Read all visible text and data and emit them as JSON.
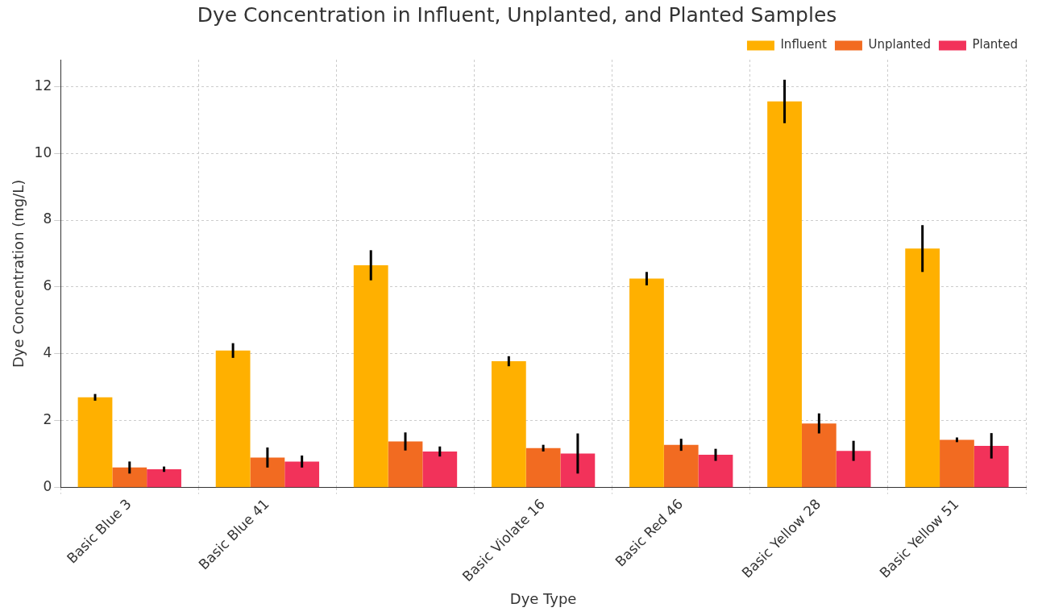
{
  "chart_data": {
    "type": "bar",
    "title": "Dye Concentration in Influent, Unplanted, and Planted Samples",
    "xlabel": "Dye Type",
    "ylabel": "Dye Concentration (mg/L)",
    "categories": [
      "Basic Blue 3",
      "Basic Blue 41",
      null,
      "Basic Violate 16",
      "Basic Red 46",
      "Basic Yellow 28",
      "Basic Yellow 51"
    ],
    "series": [
      {
        "name": "Influent",
        "color": "#ffb000",
        "values": [
          2.7,
          4.1,
          6.65,
          3.78,
          6.25,
          11.55,
          7.15
        ],
        "errors": [
          0.1,
          0.22,
          0.45,
          0.15,
          0.2,
          0.65,
          0.7
        ]
      },
      {
        "name": "Unplanted",
        "color": "#f26b21",
        "values": [
          0.6,
          0.9,
          1.38,
          1.18,
          1.28,
          1.92,
          1.43
        ],
        "errors": [
          0.18,
          0.3,
          0.27,
          0.1,
          0.18,
          0.3,
          0.07
        ]
      },
      {
        "name": "Planted",
        "color": "#f2325a",
        "values": [
          0.55,
          0.78,
          1.08,
          1.02,
          0.98,
          1.1,
          1.25
        ],
        "errors": [
          0.08,
          0.18,
          0.15,
          0.6,
          0.18,
          0.3,
          0.38
        ]
      }
    ],
    "ylim": [
      0,
      12.8
    ],
    "yticks": [
      0,
      2,
      4,
      6,
      8,
      10,
      12
    ],
    "grid": true,
    "legend": "top right"
  }
}
